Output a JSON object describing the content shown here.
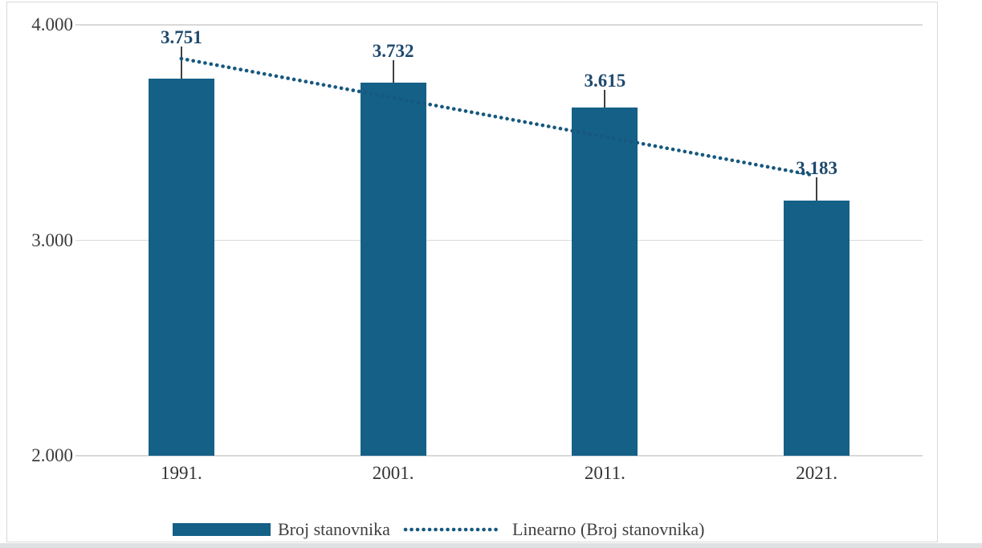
{
  "chart_data": {
    "type": "bar",
    "title": "",
    "categories": [
      "1991.",
      "2001.",
      "2011.",
      "2021."
    ],
    "values": [
      3751,
      3732,
      3615,
      3183
    ],
    "value_labels": [
      "3.751",
      "3.732",
      "3.615",
      "3.183"
    ],
    "y_ticks": [
      {
        "label": "4.000",
        "value": 4000
      },
      {
        "label": "3.000",
        "value": 3000
      },
      {
        "label": "2.000",
        "value": 2000
      }
    ],
    "ylim": [
      2000,
      4000
    ],
    "grid": "horizontal",
    "legend_position": "bottom",
    "series": [
      {
        "name": "Broj stanovnika",
        "type": "bar",
        "values": [
          3751,
          3732,
          3615,
          3183
        ]
      },
      {
        "name": "Linearno (Broj stanovnika)",
        "type": "linear-trendline",
        "style": "dotted"
      }
    ],
    "colors": {
      "bar": "#156087",
      "trendline": "#16587f",
      "value_label": "#1f4a6e",
      "axis_text": "#3b3b3b",
      "gridline": "#d9d9d9",
      "leader": "#404040"
    }
  }
}
